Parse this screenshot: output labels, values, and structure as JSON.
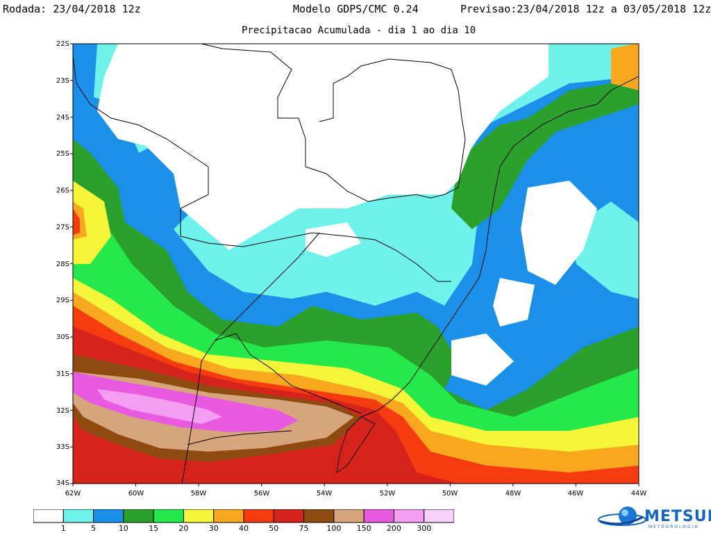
{
  "header": {
    "rodada": "Rodada: 23/04/2018 12z",
    "modelo": "Modelo GDPS/CMC 0.24",
    "previsao": "Previsao:23/04/2018 12z a 03/05/2018 12z",
    "subtitle": "Precipitacao Acumulada - dia 1 ao dia 10"
  },
  "axes": {
    "lat_labels": [
      "22S",
      "23S",
      "24S",
      "25S",
      "26S",
      "27S",
      "28S",
      "29S",
      "30S",
      "31S",
      "32S",
      "33S",
      "34S"
    ],
    "lon_labels": [
      "62W",
      "60W",
      "58W",
      "56W",
      "54W",
      "52W",
      "50W",
      "48W",
      "46W",
      "44W"
    ]
  },
  "legend": {
    "colors": [
      "#ffffff",
      "#6ff2ec",
      "#1a90e8",
      "#2ca02c",
      "#25e84a",
      "#f5f53a",
      "#f8a81f",
      "#f53b10",
      "#d5221a",
      "#8f4a10",
      "#d6a57c",
      "#e85be0",
      "#f49ef2",
      "#f8d1f8"
    ],
    "labels": [
      "1",
      "5",
      "10",
      "15",
      "20",
      "30",
      "40",
      "50",
      "75",
      "100",
      "150",
      "200",
      "300"
    ]
  },
  "brand": {
    "name": "METSUL",
    "tagline": "METEOROLOGIA"
  }
}
